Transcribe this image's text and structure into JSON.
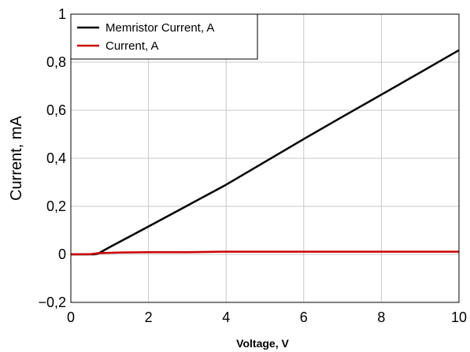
{
  "chart_data": {
    "type": "line",
    "xlabel": "Voltage, V",
    "ylabel": "Current, mA",
    "xlim": [
      0,
      10
    ],
    "ylim": [
      -0.2,
      1
    ],
    "x_ticks": [
      0,
      2,
      4,
      6,
      8,
      10
    ],
    "y_ticks": [
      -0.2,
      0,
      0.2,
      0.4,
      0.6,
      0.8,
      1
    ],
    "x_tick_labels": [
      "0",
      "2",
      "4",
      "6",
      "8",
      "10"
    ],
    "y_tick_labels": [
      "−0,2",
      "0",
      "0,2",
      "0,4",
      "0,6",
      "0,8",
      "1"
    ],
    "grid": true,
    "legend_position": "top-left",
    "series": [
      {
        "name": "Memristor Current, A",
        "color": "#000000",
        "x": [
          0,
          0.6,
          0.7,
          1.0,
          2.0,
          3.0,
          4.0,
          5.0,
          6.0,
          7.0,
          8.0,
          9.0,
          10.0
        ],
        "y": [
          0,
          0,
          0.003,
          0.03,
          0.116,
          0.203,
          0.29,
          0.385,
          0.48,
          0.573,
          0.665,
          0.757,
          0.85
        ]
      },
      {
        "name": "Current, A",
        "color": "#cc0000",
        "x": [
          0,
          0.5,
          0.7,
          1.3,
          2.0,
          3.0,
          3.9,
          5.0,
          6.0,
          8.0,
          10.0
        ],
        "y": [
          0,
          0.001,
          0.005,
          0.008,
          0.009,
          0.009,
          0.011,
          0.011,
          0.011,
          0.011,
          0.011
        ]
      }
    ]
  }
}
